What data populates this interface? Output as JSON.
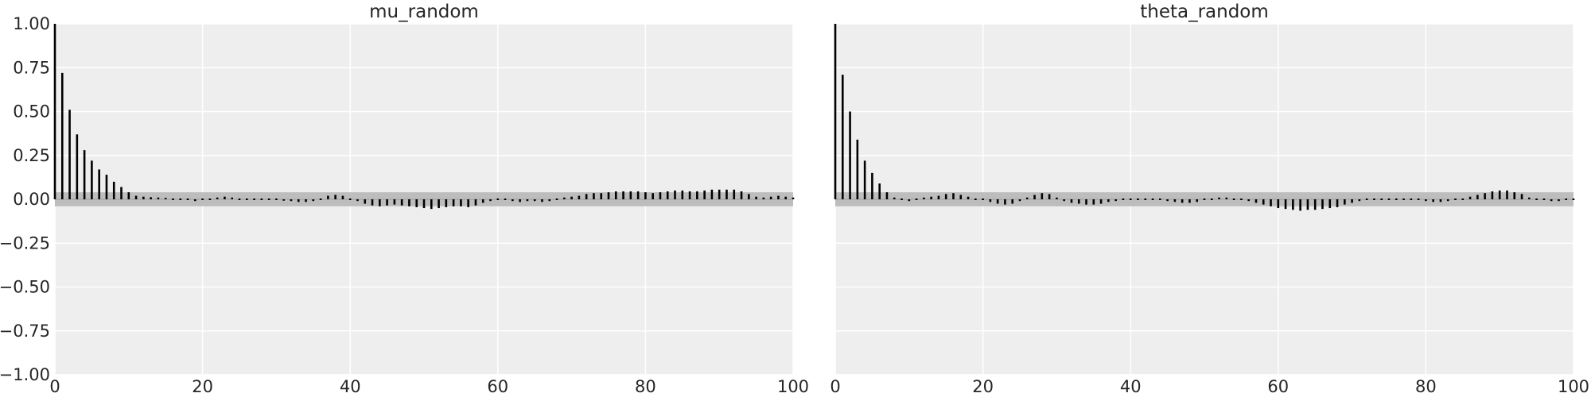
{
  "chart_data": [
    {
      "type": "bar",
      "title": "mu_random",
      "xlabel": "",
      "ylabel": "",
      "xlim": [
        0,
        100
      ],
      "ylim": [
        -1.0,
        1.0
      ],
      "grid": true,
      "confidence_band": [
        -0.04,
        0.04
      ],
      "x_ticks": [
        "0",
        "20",
        "40",
        "60",
        "80",
        "100"
      ],
      "y_ticks": [
        "1.00",
        "0.75",
        "0.50",
        "0.25",
        "0.00",
        "−0.25",
        "−0.50",
        "−0.75",
        "−1.00"
      ],
      "show_y_ticks": true,
      "values": [
        1.0,
        0.72,
        0.51,
        0.37,
        0.28,
        0.22,
        0.17,
        0.14,
        0.1,
        0.07,
        0.04,
        0.02,
        0.015,
        0.012,
        0.01,
        0.008,
        0.005,
        0.003,
        -0.005,
        -0.01,
        -0.003,
        0.005,
        0.01,
        0.015,
        0.01,
        0.005,
        0.0,
        -0.002,
        0.0,
        -0.003,
        -0.005,
        -0.008,
        -0.01,
        -0.015,
        -0.015,
        -0.01,
        0.005,
        0.02,
        0.025,
        0.02,
        0.005,
        -0.01,
        -0.025,
        -0.035,
        -0.04,
        -0.035,
        -0.03,
        -0.035,
        -0.04,
        -0.045,
        -0.05,
        -0.055,
        -0.05,
        -0.045,
        -0.04,
        -0.04,
        -0.045,
        -0.035,
        -0.02,
        -0.01,
        -0.005,
        -0.005,
        -0.01,
        -0.015,
        -0.01,
        -0.01,
        -0.015,
        -0.01,
        0.005,
        0.01,
        0.015,
        0.02,
        0.03,
        0.035,
        0.035,
        0.04,
        0.045,
        0.045,
        0.045,
        0.045,
        0.04,
        0.035,
        0.04,
        0.045,
        0.05,
        0.05,
        0.045,
        0.045,
        0.05,
        0.055,
        0.055,
        0.055,
        0.055,
        0.045,
        0.03,
        0.015,
        0.01,
        0.015,
        0.02,
        0.015,
        0.01
      ]
    },
    {
      "type": "bar",
      "title": "theta_random",
      "xlabel": "",
      "ylabel": "",
      "xlim": [
        0,
        100
      ],
      "ylim": [
        -1.0,
        1.0
      ],
      "grid": true,
      "confidence_band": [
        -0.04,
        0.04
      ],
      "x_ticks": [
        "0",
        "20",
        "40",
        "60",
        "80",
        "100"
      ],
      "y_ticks": [],
      "show_y_ticks": false,
      "values": [
        1.0,
        0.71,
        0.5,
        0.34,
        0.22,
        0.15,
        0.09,
        0.04,
        0.01,
        -0.005,
        -0.01,
        0.0,
        0.01,
        0.015,
        0.02,
        0.03,
        0.035,
        0.025,
        0.015,
        0.005,
        -0.005,
        -0.015,
        -0.025,
        -0.03,
        -0.025,
        -0.01,
        0.01,
        0.025,
        0.035,
        0.03,
        0.01,
        -0.01,
        -0.02,
        -0.025,
        -0.03,
        -0.03,
        -0.025,
        -0.015,
        -0.01,
        -0.005,
        0.0,
        0.005,
        0.005,
        0.0,
        -0.005,
        -0.01,
        -0.015,
        -0.02,
        -0.02,
        -0.015,
        -0.005,
        0.005,
        0.01,
        0.01,
        0.005,
        0.0,
        -0.01,
        -0.02,
        -0.03,
        -0.04,
        -0.05,
        -0.055,
        -0.06,
        -0.065,
        -0.06,
        -0.06,
        -0.055,
        -0.05,
        -0.045,
        -0.03,
        -0.02,
        -0.01,
        -0.005,
        0.0,
        0.0,
        0.0,
        0.005,
        0.005,
        0.0,
        -0.005,
        -0.01,
        -0.015,
        -0.015,
        -0.01,
        -0.005,
        0.005,
        0.015,
        0.025,
        0.035,
        0.045,
        0.05,
        0.05,
        0.04,
        0.03,
        0.01,
        0.0,
        -0.005,
        -0.01,
        -0.01,
        -0.005,
        0.0
      ]
    }
  ]
}
